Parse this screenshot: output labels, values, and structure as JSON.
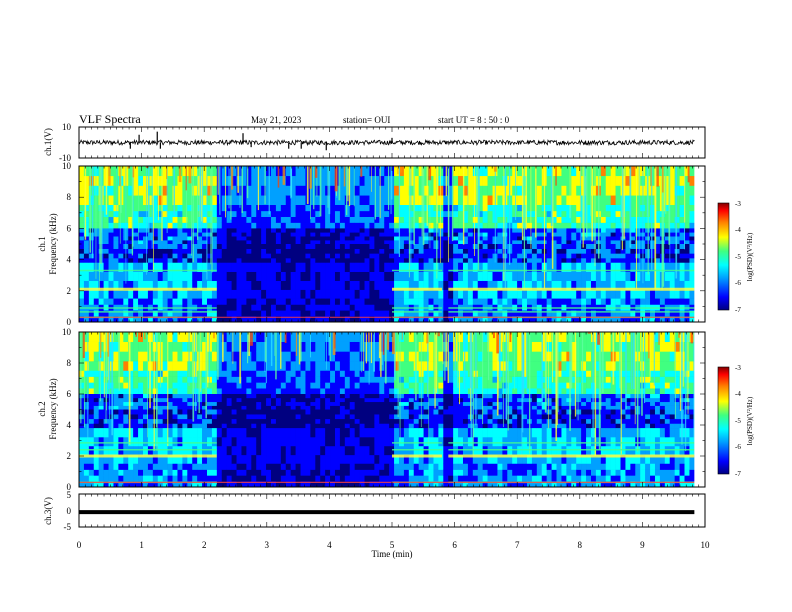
{
  "header": {
    "title": "VLF Spectra",
    "date": "May 21, 2023",
    "station": "station= OUI",
    "start": "start  UT =  8 : 50 : 0"
  },
  "chart_data": [
    {
      "type": "line",
      "panel": "ch1-waveform",
      "ylabel": "ch.1(V)",
      "ylim": [
        -10,
        10
      ],
      "yticks": [
        "10",
        "-10"
      ],
      "baseline": 0,
      "noise_amplitude": 1.5,
      "spikes": [
        {
          "t": 0.82,
          "v": -4
        },
        {
          "t": 0.96,
          "v": 5
        },
        {
          "t": 1.25,
          "v": 7
        },
        {
          "t": 1.3,
          "v": -4
        },
        {
          "t": 2.62,
          "v": 6
        },
        {
          "t": 2.75,
          "v": -3
        },
        {
          "t": 3.35,
          "v": -4
        },
        {
          "t": 3.55,
          "v": -4
        },
        {
          "t": 3.95,
          "v": -5
        },
        {
          "t": 5.0,
          "v": 3
        }
      ]
    },
    {
      "type": "heatmap",
      "panel": "ch1-spectrogram",
      "ylabel": "ch.1\nFrequency (kHz)",
      "ylim": [
        0,
        10
      ],
      "yticks": [
        "0",
        "2",
        "4",
        "6",
        "8",
        "10"
      ],
      "colorbar": {
        "label": "log(PSD)(V²/Hz)",
        "range": [
          -7,
          -3
        ],
        "ticks": [
          "-3",
          "-4",
          "-5",
          "-6",
          "-7"
        ]
      },
      "gaps": [
        [
          2.2,
          5.0
        ],
        [
          5.8,
          5.9
        ]
      ],
      "horizontal_lines_khz": [
        2.1,
        3.3,
        0.3,
        0.65,
        0.9
      ]
    },
    {
      "type": "heatmap",
      "panel": "ch2-spectrogram",
      "ylabel": "ch.2\nFrequency (kHz)",
      "ylim": [
        0,
        10
      ],
      "yticks": [
        "0",
        "2",
        "4",
        "6",
        "8",
        "10"
      ],
      "colorbar": {
        "label": "log(PSD)(V²/Hz)",
        "range": [
          -7,
          -3
        ],
        "ticks": [
          "-3",
          "-4",
          "-5",
          "-6",
          "-7"
        ]
      },
      "gaps": [
        [
          2.2,
          5.0
        ],
        [
          5.8,
          5.9
        ]
      ],
      "horizontal_lines_khz": [
        2.0,
        2.4,
        2.85,
        0.3
      ]
    },
    {
      "type": "line",
      "panel": "ch3-waveform",
      "ylabel": "ch.3(V)",
      "ylim": [
        -5,
        5
      ],
      "yticks": [
        "5",
        "0",
        "-5"
      ],
      "baseline": -0.5,
      "noise_amplitude": 0
    }
  ],
  "xaxis": {
    "xlabel": "Time (min)",
    "xlim": [
      0,
      10
    ],
    "ticks": [
      "0",
      "1",
      "2",
      "3",
      "4",
      "5",
      "6",
      "7",
      "8",
      "9",
      "10"
    ]
  },
  "colors": {
    "jet": [
      "#000080",
      "#0000ff",
      "#00a0ff",
      "#00ffff",
      "#40ff80",
      "#ffff00",
      "#ff8000",
      "#ff0000",
      "#800000"
    ]
  }
}
